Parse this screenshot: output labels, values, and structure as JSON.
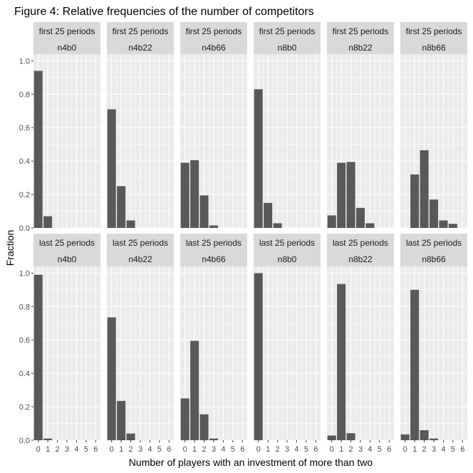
{
  "chart_data": {
    "type": "bar",
    "title": "Figure 4: Relative frequencies of the number of competitors",
    "xlabel": "Number of players with an investment of more than two",
    "ylabel": "Fraction",
    "x_ticks": [
      "0",
      "1",
      "2",
      "3",
      "4",
      "5",
      "6"
    ],
    "y_ticks": [
      "0.0",
      "0.2",
      "0.4",
      "0.6",
      "0.8",
      "1.0"
    ],
    "ylim": [
      0,
      1.04
    ],
    "xlim": [
      -0.5,
      6.5
    ],
    "grid": true,
    "bar_color": "#595959",
    "panel_background": "#ebebeb",
    "strip_background": "#d9d9d9",
    "row_labels": [
      "first 25 periods",
      "last 25 periods"
    ],
    "column_labels": [
      "n4b0",
      "n4b22",
      "n4b66",
      "n8b0",
      "n8b22",
      "n8b66"
    ],
    "panels": [
      {
        "period": "first 25 periods",
        "treatment": "n4b0",
        "values": [
          0.94,
          0.07,
          0,
          0,
          0,
          0,
          0
        ]
      },
      {
        "period": "first 25 periods",
        "treatment": "n4b22",
        "values": [
          0.71,
          0.25,
          0.045,
          0,
          0,
          0,
          0
        ]
      },
      {
        "period": "first 25 periods",
        "treatment": "n4b66",
        "values": [
          0.39,
          0.405,
          0.195,
          0.015,
          0,
          0,
          0
        ]
      },
      {
        "period": "first 25 periods",
        "treatment": "n8b0",
        "values": [
          0.83,
          0.15,
          0.028,
          0,
          0,
          0,
          0
        ]
      },
      {
        "period": "first 25 periods",
        "treatment": "n8b22",
        "values": [
          0.075,
          0.39,
          0.395,
          0.12,
          0.028,
          0,
          0
        ]
      },
      {
        "period": "first 25 periods",
        "treatment": "n8b66",
        "values": [
          0,
          0.32,
          0.465,
          0.17,
          0.045,
          0.025,
          0
        ]
      },
      {
        "period": "last 25 periods",
        "treatment": "n4b0",
        "values": [
          0.99,
          0.01,
          0,
          0,
          0,
          0,
          0
        ]
      },
      {
        "period": "last 25 periods",
        "treatment": "n4b22",
        "values": [
          0.735,
          0.235,
          0.04,
          0,
          0,
          0,
          0
        ]
      },
      {
        "period": "last 25 periods",
        "treatment": "n4b66",
        "values": [
          0.25,
          0.595,
          0.155,
          0.01,
          0,
          0,
          0
        ]
      },
      {
        "period": "last 25 periods",
        "treatment": "n8b0",
        "values": [
          1.0,
          0,
          0,
          0,
          0,
          0,
          0
        ]
      },
      {
        "period": "last 25 periods",
        "treatment": "n8b22",
        "values": [
          0.028,
          0.935,
          0.042,
          0,
          0,
          0,
          0
        ]
      },
      {
        "period": "last 25 periods",
        "treatment": "n8b66",
        "values": [
          0.035,
          0.9,
          0.06,
          0.01,
          0,
          0,
          0
        ]
      }
    ]
  }
}
